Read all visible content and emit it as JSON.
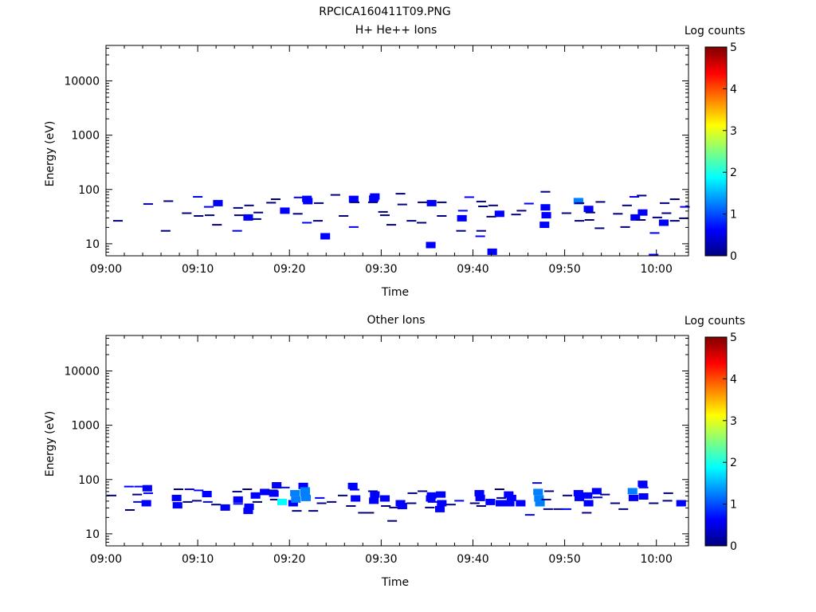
{
  "page_title": "RPCICA160411T09.PNG",
  "colormap": [
    "#00007f",
    "#0000ff",
    "#0080ff",
    "#00ffff",
    "#80ff80",
    "#ffff00",
    "#ff8000",
    "#ff0000",
    "#7f0000"
  ],
  "chart_data": [
    {
      "type": "heatmap",
      "title": "H+ He++ Ions",
      "xlabel": "Time",
      "ylabel": "Energy (eV)",
      "x_ticks": [
        "09:00",
        "09:10",
        "09:20",
        "09:30",
        "09:40",
        "09:50",
        "10:00"
      ],
      "x_range_minutes": [
        0,
        63.5
      ],
      "y_scale": "log",
      "y_range": [
        6,
        45000
      ],
      "y_ticks": [
        "10",
        "100",
        "1000",
        "10000"
      ],
      "colorbar": {
        "label": "Log counts",
        "range": [
          0,
          5
        ],
        "ticks": [
          "0",
          "1",
          "2",
          "3",
          "4",
          "5"
        ]
      },
      "points": [
        [
          1.3,
          26,
          0.3
        ],
        [
          4.6,
          53,
          0.35
        ],
        [
          6.5,
          17,
          0.3
        ],
        [
          6.8,
          60,
          0.3
        ],
        [
          8.8,
          36,
          0.3
        ],
        [
          10,
          72,
          0.4
        ],
        [
          10.1,
          32,
          0.3
        ],
        [
          11.2,
          47,
          0.35
        ],
        [
          11.3,
          33,
          0.3
        ],
        [
          12.1,
          22,
          0.3
        ],
        [
          12.2,
          55,
          0.5
        ],
        [
          14.3,
          17,
          0.4
        ],
        [
          14.4,
          45,
          0.3
        ],
        [
          14.5,
          33,
          0.3
        ],
        [
          15.5,
          30,
          0.5
        ],
        [
          15.6,
          50,
          0.3
        ],
        [
          16.4,
          28,
          0.3
        ],
        [
          16.6,
          37,
          0.3
        ],
        [
          18,
          56,
          0.3
        ],
        [
          18.5,
          65,
          0.3
        ],
        [
          19.5,
          40,
          0.5
        ],
        [
          20.9,
          35,
          0.3
        ],
        [
          21,
          70,
          0.4
        ],
        [
          21.9,
          66,
          0.8
        ],
        [
          22,
          60,
          0.9
        ],
        [
          21.9,
          24,
          0.4
        ],
        [
          23.1,
          26,
          0.3
        ],
        [
          23.2,
          55,
          0.3
        ],
        [
          23.9,
          13.5,
          0.6
        ],
        [
          25,
          78,
          0.3
        ],
        [
          25.9,
          32,
          0.3
        ],
        [
          27,
          20,
          0.4
        ],
        [
          27,
          64,
          0.7
        ],
        [
          27,
          73,
          0.4
        ],
        [
          27.1,
          57,
          0.3
        ],
        [
          29.1,
          57,
          0.3
        ],
        [
          29.2,
          67,
          0.8
        ],
        [
          29.3,
          73,
          0.5
        ],
        [
          30.2,
          38,
          0.3
        ],
        [
          30.4,
          33,
          0.3
        ],
        [
          31.1,
          22,
          0.3
        ],
        [
          32.1,
          82,
          0.3
        ],
        [
          32.3,
          52,
          0.3
        ],
        [
          33.3,
          26,
          0.3
        ],
        [
          34.4,
          24,
          0.3
        ],
        [
          34.5,
          57,
          0.3
        ],
        [
          35.4,
          9.3,
          0.5
        ],
        [
          35.5,
          55,
          0.5
        ],
        [
          36.6,
          57,
          0.3
        ],
        [
          36.6,
          32,
          0.3
        ],
        [
          38.7,
          17,
          0.3
        ],
        [
          38.8,
          29,
          0.5
        ],
        [
          38.9,
          40,
          0.4
        ],
        [
          39.6,
          71,
          0.4
        ],
        [
          40.8,
          13.5,
          0.4
        ],
        [
          40.9,
          17,
          0.3
        ],
        [
          40.9,
          59,
          0.3
        ],
        [
          41.1,
          48,
          0.3
        ],
        [
          42,
          31,
          0.3
        ],
        [
          42.1,
          7,
          0.5
        ],
        [
          42.2,
          50,
          0.3
        ],
        [
          42.9,
          35,
          0.5
        ],
        [
          44.7,
          34,
          0.3
        ],
        [
          45.3,
          40,
          0.3
        ],
        [
          46.1,
          54,
          0.4
        ],
        [
          47.8,
          22,
          0.5
        ],
        [
          47.9,
          89,
          0.3
        ],
        [
          47.9,
          46,
          0.5
        ],
        [
          48,
          33,
          0.5
        ],
        [
          50.2,
          36,
          0.3
        ],
        [
          51.5,
          60,
          1.3
        ],
        [
          51.6,
          26,
          0.3
        ],
        [
          51.6,
          55,
          0.3
        ],
        [
          52.6,
          43,
          0.6
        ],
        [
          52.7,
          27,
          0.3
        ],
        [
          52.8,
          37,
          0.3
        ],
        [
          53.8,
          19,
          0.3
        ],
        [
          53.9,
          58,
          0.3
        ],
        [
          55.8,
          35,
          0.3
        ],
        [
          56.6,
          20,
          0.3
        ],
        [
          56.8,
          50,
          0.3
        ],
        [
          57.6,
          72,
          0.4
        ],
        [
          57.7,
          30,
          0.5
        ],
        [
          58.3,
          27,
          0.3
        ],
        [
          58.4,
          76,
          0.3
        ],
        [
          58.5,
          37,
          0.5
        ],
        [
          59.7,
          6.2,
          0.4
        ],
        [
          59.8,
          15.5,
          0.4
        ],
        [
          60.1,
          30,
          0.3
        ],
        [
          60.8,
          24,
          0.6
        ],
        [
          60.9,
          55,
          0.3
        ],
        [
          61.1,
          36,
          0.3
        ],
        [
          62,
          26,
          0.3
        ],
        [
          62,
          65,
          0.3
        ],
        [
          63,
          29,
          0.3
        ],
        [
          63.1,
          47,
          0.4
        ]
      ]
    },
    {
      "type": "heatmap",
      "title": "Other Ions",
      "xlabel": "Time",
      "ylabel": "Energy (eV)",
      "x_ticks": [
        "09:00",
        "09:10",
        "09:20",
        "09:30",
        "09:40",
        "09:50",
        "10:00"
      ],
      "x_range_minutes": [
        0,
        63.5
      ],
      "y_scale": "log",
      "y_range": [
        6,
        45000
      ],
      "y_ticks": [
        "10",
        "100",
        "1000",
        "10000"
      ],
      "colorbar": {
        "label": "Log counts",
        "range": [
          0,
          5
        ],
        "ticks": [
          "0",
          "1",
          "2",
          "3",
          "4",
          "5"
        ]
      },
      "points": [
        [
          0.6,
          50,
          0.3
        ],
        [
          2.5,
          73,
          0.4
        ],
        [
          2.6,
          27,
          0.3
        ],
        [
          3.4,
          52,
          0.3
        ],
        [
          3.5,
          38,
          0.4
        ],
        [
          3.6,
          73,
          0.4
        ],
        [
          4.4,
          36,
          0.7
        ],
        [
          4.5,
          68,
          0.6
        ],
        [
          4.6,
          55,
          0.4
        ],
        [
          7.7,
          45,
          0.6
        ],
        [
          7.8,
          33,
          0.7
        ],
        [
          7.9,
          65,
          0.3
        ],
        [
          8.9,
          38,
          0.3
        ],
        [
          9.1,
          65,
          0.4
        ],
        [
          9.9,
          40,
          0.3
        ],
        [
          10.1,
          62,
          0.4
        ],
        [
          11,
          53,
          0.8
        ],
        [
          11.1,
          38,
          0.4
        ],
        [
          12,
          34,
          0.3
        ],
        [
          13,
          30,
          0.5
        ],
        [
          14.3,
          59,
          0.3
        ],
        [
          14.4,
          42,
          0.9
        ],
        [
          14.4,
          35,
          0.4
        ],
        [
          15.4,
          65,
          0.3
        ],
        [
          15.5,
          26,
          0.7
        ],
        [
          15.6,
          31,
          0.6
        ],
        [
          16.3,
          50,
          0.5
        ],
        [
          16.5,
          38,
          0.3
        ],
        [
          17.3,
          58,
          0.5
        ],
        [
          18.2,
          62,
          0.3
        ],
        [
          18.3,
          54,
          0.5
        ],
        [
          18.4,
          42,
          0.3
        ],
        [
          18.6,
          77,
          0.5
        ],
        [
          19.2,
          38,
          1.6
        ],
        [
          19.5,
          70,
          0.4
        ],
        [
          20.4,
          36,
          0.6
        ],
        [
          20.6,
          55,
          1.2
        ],
        [
          20.7,
          42,
          1.5
        ],
        [
          20.8,
          26,
          0.3
        ],
        [
          21.5,
          75,
          0.6
        ],
        [
          21.7,
          62,
          1.3
        ],
        [
          21.7,
          55,
          1.2
        ],
        [
          21.8,
          45,
          1.4
        ],
        [
          22.6,
          26,
          0.3
        ],
        [
          23.3,
          45,
          0.4
        ],
        [
          23.5,
          36,
          0.3
        ],
        [
          24.6,
          38,
          0.3
        ],
        [
          25.8,
          50,
          0.3
        ],
        [
          26.7,
          32,
          0.3
        ],
        [
          26.9,
          75,
          0.6
        ],
        [
          27.1,
          64,
          0.4
        ],
        [
          27.2,
          44,
          0.5
        ],
        [
          28,
          24,
          0.3
        ],
        [
          28.7,
          24,
          0.3
        ],
        [
          29.1,
          60,
          0.3
        ],
        [
          29.2,
          40,
          0.7
        ],
        [
          29.3,
          52,
          0.7
        ],
        [
          30.4,
          44,
          0.6
        ],
        [
          30.5,
          32,
          0.3
        ],
        [
          31.2,
          17,
          0.3
        ],
        [
          31.4,
          30,
          0.3
        ],
        [
          32.1,
          36,
          0.7
        ],
        [
          32.3,
          32,
          0.5
        ],
        [
          33.3,
          36,
          0.3
        ],
        [
          33.4,
          55,
          0.3
        ],
        [
          34.5,
          60,
          0.3
        ],
        [
          35.3,
          30,
          0.3
        ],
        [
          35.4,
          44,
          0.9
        ],
        [
          35.5,
          50,
          0.5
        ],
        [
          35.6,
          38,
          0.4
        ],
        [
          36.4,
          28,
          0.7
        ],
        [
          36.5,
          52,
          0.5
        ],
        [
          36.6,
          36,
          0.5
        ],
        [
          37.6,
          34,
          0.3
        ],
        [
          38.5,
          40,
          0.4
        ],
        [
          40.2,
          36,
          0.3
        ],
        [
          40.7,
          55,
          0.8
        ],
        [
          40.8,
          45,
          0.7
        ],
        [
          40.9,
          32,
          0.3
        ],
        [
          41.9,
          38,
          0.5
        ],
        [
          42.9,
          65,
          0.3
        ],
        [
          43,
          36,
          0.5
        ],
        [
          43.1,
          45,
          0.3
        ],
        [
          43.9,
          52,
          0.6
        ],
        [
          44,
          36,
          0.8
        ],
        [
          44.2,
          45,
          0.6
        ],
        [
          45.2,
          36,
          0.5
        ],
        [
          46.2,
          22,
          0.4
        ],
        [
          47,
          85,
          0.4
        ],
        [
          47.1,
          58,
          1.1
        ],
        [
          47.2,
          44,
          1.3
        ],
        [
          47.3,
          36,
          1.2
        ],
        [
          48,
          42,
          0.3
        ],
        [
          48.2,
          28,
          0.3
        ],
        [
          48.3,
          60,
          0.3
        ],
        [
          49.3,
          28,
          0.3
        ],
        [
          50.2,
          28,
          0.4
        ],
        [
          50.3,
          50,
          0.3
        ],
        [
          51.5,
          55,
          0.6
        ],
        [
          51.6,
          45,
          0.9
        ],
        [
          52.4,
          24,
          0.3
        ],
        [
          52.5,
          50,
          0.7
        ],
        [
          52.6,
          36,
          0.6
        ],
        [
          53.5,
          60,
          0.7
        ],
        [
          53.6,
          46,
          0.4
        ],
        [
          54.4,
          52,
          0.3
        ],
        [
          55.5,
          36,
          0.3
        ],
        [
          56.4,
          28,
          0.3
        ],
        [
          57.4,
          60,
          1.0
        ],
        [
          57.5,
          45,
          0.6
        ],
        [
          58.5,
          82,
          0.6
        ],
        [
          58.6,
          70,
          0.4
        ],
        [
          58.6,
          48,
          0.5
        ],
        [
          59.7,
          36,
          0.3
        ],
        [
          61.2,
          40,
          0.3
        ],
        [
          61.3,
          55,
          0.3
        ],
        [
          62.7,
          36,
          0.5
        ]
      ]
    }
  ]
}
